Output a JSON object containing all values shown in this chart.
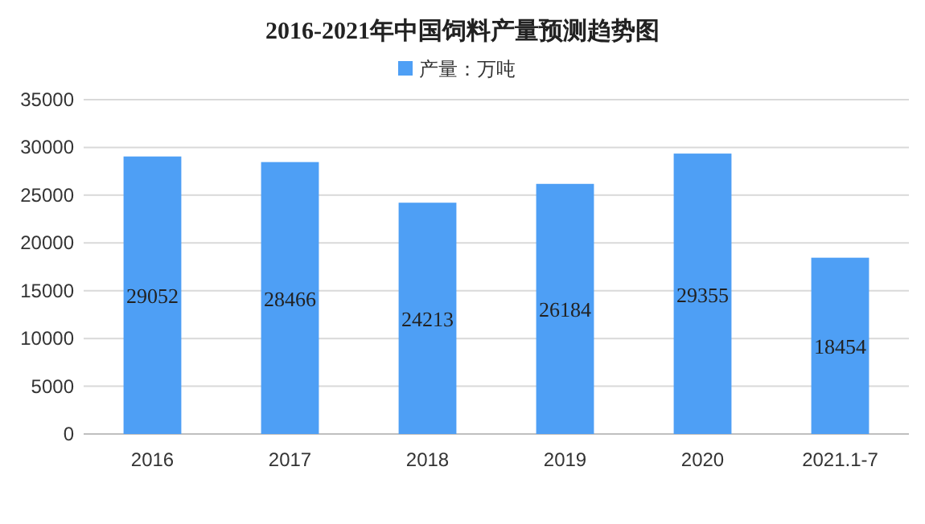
{
  "chart_data": {
    "type": "bar",
    "title": "2016-2021年中国饲料产量预测趋势图",
    "categories": [
      "2016",
      "2017",
      "2018",
      "2019",
      "2020",
      "2021.1-7"
    ],
    "series": [
      {
        "name": "产量：万吨",
        "color": "#4e9ff5",
        "values": [
          29052,
          28466,
          24213,
          26184,
          29355,
          18454
        ]
      }
    ],
    "ylim": [
      0,
      35000
    ],
    "yticks": [
      0,
      5000,
      10000,
      15000,
      20000,
      25000,
      30000,
      35000
    ],
    "grid": "y",
    "legend": "top",
    "data_labels": true
  }
}
